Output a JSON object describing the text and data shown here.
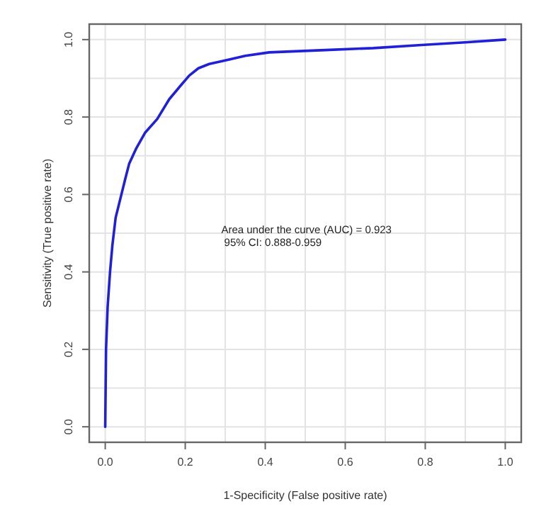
{
  "chart_data": {
    "type": "line",
    "xlabel": "1-Specificity (False positive rate)",
    "ylabel": "Sensitivity (True positive rate)",
    "annotations": [
      "Area under the curve (AUC) = 0.923\n 95% CI: 0.888-0.959"
    ],
    "xlim": [
      -0.04,
      1.04
    ],
    "ylim": [
      -0.04,
      1.04
    ],
    "xticks": [
      {
        "value": 0,
        "label": "0.0"
      },
      {
        "value": 0.1,
        "label": null
      },
      {
        "value": 0.2,
        "label": "0.2"
      },
      {
        "value": 0.3,
        "label": null
      },
      {
        "value": 0.4,
        "label": "0.4"
      },
      {
        "value": 0.5,
        "label": null
      },
      {
        "value": 0.6,
        "label": "0.6"
      },
      {
        "value": 0.7,
        "label": null
      },
      {
        "value": 0.8,
        "label": "0.8"
      },
      {
        "value": 0.9,
        "label": null
      },
      {
        "value": 1,
        "label": "1.0"
      }
    ],
    "yticks": [
      {
        "value": 0,
        "label": "0.0"
      },
      {
        "value": 0.1,
        "label": null
      },
      {
        "value": 0.2,
        "label": "0.2"
      },
      {
        "value": 0.3,
        "label": null
      },
      {
        "value": 0.4,
        "label": "0.4"
      },
      {
        "value": 0.5,
        "label": null
      },
      {
        "value": 0.6,
        "label": "0.6"
      },
      {
        "value": 0.7,
        "label": null
      },
      {
        "value": 0.8,
        "label": "0.8"
      },
      {
        "value": 0.9,
        "label": null
      },
      {
        "value": 1,
        "label": "1.0"
      }
    ],
    "grid": true,
    "line_style": "solid",
    "marker": "none",
    "series": [
      {
        "color": "#2020d8",
        "x": [
          0,
          0.002,
          0.006,
          0.012,
          0.018,
          0.026,
          0.038,
          0.05,
          0.06,
          0.078,
          0.1,
          0.13,
          0.16,
          0.19,
          0.21,
          0.233,
          0.26,
          0.3,
          0.35,
          0.41,
          0.55,
          0.67,
          0.79,
          0.9,
          1
        ],
        "values": [
          0,
          0.2,
          0.31,
          0.4,
          0.47,
          0.54,
          0.59,
          0.64,
          0.68,
          0.72,
          0.76,
          0.795,
          0.846,
          0.883,
          0.907,
          0.926,
          0.937,
          0.946,
          0.958,
          0.967,
          0.973,
          0.978,
          0.986,
          0.993,
          1
        ]
      }
    ]
  }
}
